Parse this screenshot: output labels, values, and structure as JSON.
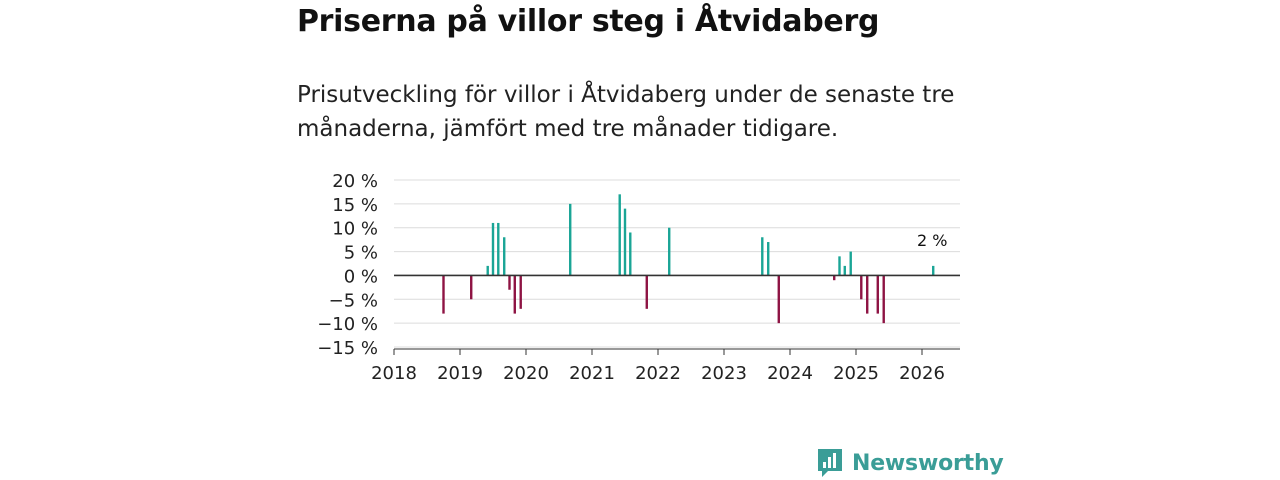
{
  "header": {
    "title": "Priserna på villor steg i Åtvidaberg",
    "subtitle": "Prisutveckling för villor i Åtvidaberg under de senaste tre månaderna, jämfört med tre månader tidigare."
  },
  "brand": {
    "name": "Newsworthy",
    "color": "#3a9d97",
    "icon": "newsworthy-chart-icon"
  },
  "colors": {
    "positive": "#1aa596",
    "negative": "#8e1343",
    "grid": "#dcdcdc",
    "zero_line": "#333333"
  },
  "chart_data": {
    "type": "bar",
    "title": "Priserna på villor steg i Åtvidaberg",
    "xlabel": "",
    "ylabel": "",
    "ylim": [
      -15,
      20
    ],
    "xlim": [
      2018,
      2026.6
    ],
    "y_ticks": [
      20,
      15,
      10,
      5,
      0,
      -5,
      -10,
      -15
    ],
    "y_tick_labels": [
      "20 %",
      "15 %",
      "10 %",
      "5 %",
      "0 %",
      "−5 %",
      "−10 %",
      "−15 %"
    ],
    "x_ticks": [
      2018,
      2019,
      2020,
      2021,
      2022,
      2023,
      2024,
      2025,
      2026
    ],
    "x_tick_labels": [
      "2018",
      "2019",
      "2020",
      "2021",
      "2022",
      "2023",
      "2024",
      "2025",
      "2026"
    ],
    "grid": true,
    "annotation": {
      "text": "2 %",
      "x": 2026.17,
      "y": 2
    },
    "points": [
      {
        "x": 2018.75,
        "y": -8
      },
      {
        "x": 2019.17,
        "y": -5
      },
      {
        "x": 2019.42,
        "y": 2
      },
      {
        "x": 2019.5,
        "y": 11
      },
      {
        "x": 2019.58,
        "y": 11
      },
      {
        "x": 2019.67,
        "y": 8
      },
      {
        "x": 2019.75,
        "y": -3
      },
      {
        "x": 2019.83,
        "y": -8
      },
      {
        "x": 2019.92,
        "y": -7
      },
      {
        "x": 2020.67,
        "y": 15
      },
      {
        "x": 2021.42,
        "y": 17
      },
      {
        "x": 2021.5,
        "y": 14
      },
      {
        "x": 2021.58,
        "y": 9
      },
      {
        "x": 2021.83,
        "y": -7
      },
      {
        "x": 2022.17,
        "y": 10
      },
      {
        "x": 2023.58,
        "y": 8
      },
      {
        "x": 2023.67,
        "y": 7
      },
      {
        "x": 2023.83,
        "y": -10
      },
      {
        "x": 2024.67,
        "y": -1
      },
      {
        "x": 2024.75,
        "y": 4
      },
      {
        "x": 2024.83,
        "y": 2
      },
      {
        "x": 2024.92,
        "y": 5
      },
      {
        "x": 2025.08,
        "y": -5
      },
      {
        "x": 2025.17,
        "y": -8
      },
      {
        "x": 2025.33,
        "y": -8
      },
      {
        "x": 2025.42,
        "y": -10
      },
      {
        "x": 2026.17,
        "y": 2
      }
    ]
  }
}
